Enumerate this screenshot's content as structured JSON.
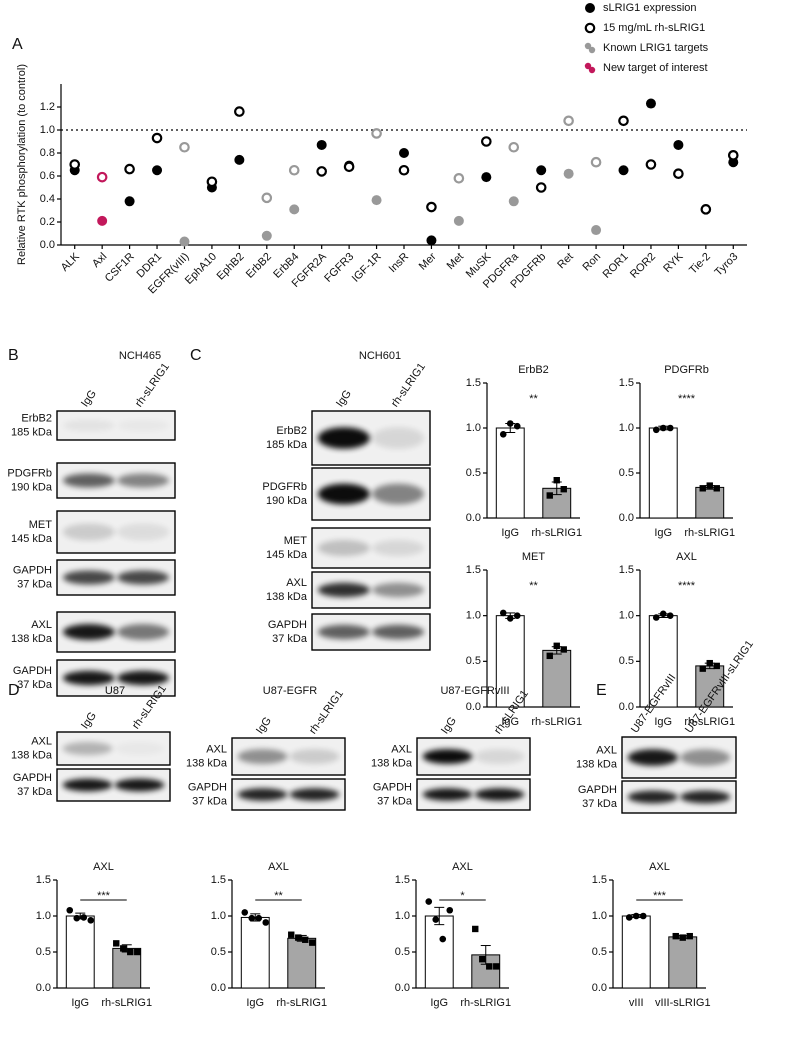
{
  "panels": [
    "A",
    "B",
    "C",
    "D",
    "E"
  ],
  "chart_data": [
    {
      "type": "dot",
      "y_label": "Relative RTK phosphorylation (to control)",
      "categories": [
        "ALK",
        "Axl",
        "CSF1R",
        "DDR1",
        "EGFR(vIII)",
        "EphA10",
        "EphB2",
        "ErbB2",
        "ErbB4",
        "FGFR2A",
        "FGFR3",
        "IGF-1R",
        "InsR",
        "Mer",
        "Met",
        "MuSK",
        "PDGFRa",
        "PDGFRb",
        "Ret",
        "Ron",
        "ROR1",
        "ROR2",
        "RYK",
        "Tie-2",
        "Tyro3"
      ],
      "series": [
        {
          "name": "sLRIG1 expression",
          "color": "#000000",
          "marker": "filled",
          "values": [
            0.65,
            0.21,
            0.38,
            0.65,
            0.03,
            0.5,
            0.74,
            0.08,
            0.31,
            0.87,
            0.69,
            0.39,
            0.8,
            0.04,
            0.21,
            0.59,
            0.38,
            0.65,
            0.62,
            0.13,
            0.65,
            1.23,
            0.87,
            0.31,
            0.72
          ]
        },
        {
          "name": "15 mg/mL rh-sLRIG1",
          "color": "#000000",
          "marker": "open",
          "values": [
            0.7,
            0.59,
            0.66,
            0.93,
            0.85,
            0.55,
            1.16,
            0.41,
            0.65,
            0.64,
            0.68,
            0.97,
            0.65,
            0.33,
            0.58,
            0.9,
            0.85,
            0.5,
            1.08,
            0.72,
            1.08,
            0.7,
            0.62,
            0.31,
            0.78
          ]
        }
      ],
      "groups": [
        {
          "name": "Known LRIG1 targets",
          "color": "#999999",
          "categories": [
            "EGFR(vIII)",
            "ErbB2",
            "ErbB4",
            "IGF-1R",
            "Met",
            "PDGFRa",
            "Ret",
            "Ron"
          ]
        },
        {
          "name": "New target of interest",
          "color": "#c2185b",
          "categories": [
            "Axl"
          ]
        }
      ],
      "reference_line": 1,
      "ylim": [
        0,
        1.4
      ],
      "yticks": [
        {
          "value": 0,
          "label": "0.0"
        },
        0.2,
        0.4,
        0.6,
        0.8,
        {
          "value": 1,
          "label": "1.0"
        },
        1.2
      ]
    },
    {
      "type": "bar",
      "title": "ErbB2",
      "categories": [
        "IgG",
        "rh-sLRIG1"
      ],
      "values": [
        1,
        0.33
      ],
      "errors": [
        0.05,
        0.07
      ],
      "points": [
        [
          0.93,
          1.05,
          1.02
        ],
        [
          0.25,
          0.42,
          0.32
        ]
      ],
      "colors": [
        "#ffffff",
        "#a6a6a6"
      ],
      "significance": "**",
      "bracket": false,
      "ylim": [
        0,
        1.5
      ],
      "yticks": [
        {
          "value": 0,
          "label": "0.0"
        },
        0.5,
        {
          "value": 1,
          "label": "1.0"
        },
        1.5
      ]
    },
    {
      "type": "bar",
      "title": "PDGFRb",
      "categories": [
        "IgG",
        "rh-sLRIG1"
      ],
      "values": [
        1,
        0.34
      ],
      "errors": [
        0.02,
        0.02
      ],
      "points": [
        [
          0.98,
          1,
          1
        ],
        [
          0.33,
          0.36,
          0.33
        ]
      ],
      "colors": [
        "#ffffff",
        "#a6a6a6"
      ],
      "significance": "****",
      "bracket": false,
      "ylim": [
        0,
        1.5
      ],
      "yticks": [
        {
          "value": 0,
          "label": "0.0"
        },
        0.5,
        {
          "value": 1,
          "label": "1.0"
        },
        1.5
      ]
    },
    {
      "type": "bar",
      "title": "MET",
      "categories": [
        "IgG",
        "rh-sLRIG1"
      ],
      "values": [
        1,
        0.62
      ],
      "errors": [
        0.03,
        0.04
      ],
      "points": [
        [
          1.03,
          0.97,
          1
        ],
        [
          0.56,
          0.67,
          0.63
        ]
      ],
      "colors": [
        "#ffffff",
        "#a6a6a6"
      ],
      "significance": "**",
      "bracket": false,
      "ylim": [
        0,
        1.5
      ],
      "yticks": [
        {
          "value": 0,
          "label": "0.0"
        },
        0.5,
        {
          "value": 1,
          "label": "1.0"
        },
        1.5
      ]
    },
    {
      "type": "bar",
      "title": "AXL",
      "categories": [
        "IgG",
        "rh-sLRIG1"
      ],
      "values": [
        1,
        0.45
      ],
      "errors": [
        0.02,
        0.03
      ],
      "points": [
        [
          0.98,
          1.02,
          1
        ],
        [
          0.42,
          0.48,
          0.45
        ]
      ],
      "colors": [
        "#ffffff",
        "#a6a6a6"
      ],
      "significance": "****",
      "bracket": false,
      "ylim": [
        0,
        1.5
      ],
      "yticks": [
        {
          "value": 0,
          "label": "0.0"
        },
        0.5,
        {
          "value": 1,
          "label": "1.0"
        },
        1.5
      ]
    },
    {
      "type": "bar",
      "title": "AXL",
      "categories": [
        "IgG",
        "rh-sLRIG1"
      ],
      "values": [
        1,
        0.55
      ],
      "errors": [
        0.04,
        0.05
      ],
      "points": [
        [
          1.08,
          0.97,
          0.98,
          0.94
        ],
        [
          0.62,
          0.55,
          0.5,
          0.5
        ]
      ],
      "colors": [
        "#ffffff",
        "#a6a6a6"
      ],
      "significance": "***",
      "bracket": true,
      "ylim": [
        0,
        1.5
      ],
      "yticks": [
        {
          "value": 0,
          "label": "0.0"
        },
        0.5,
        {
          "value": 1,
          "label": "1.0"
        },
        1.5
      ]
    },
    {
      "type": "bar",
      "title": "AXL",
      "categories": [
        "IgG",
        "rh-sLRIG1"
      ],
      "values": [
        0.98,
        0.69
      ],
      "errors": [
        0.05,
        0.04
      ],
      "points": [
        [
          1.05,
          0.97,
          0.97,
          0.91
        ],
        [
          0.74,
          0.7,
          0.67,
          0.63
        ]
      ],
      "colors": [
        "#ffffff",
        "#a6a6a6"
      ],
      "significance": "**",
      "bracket": true,
      "ylim": [
        0,
        1.5
      ],
      "yticks": [
        {
          "value": 0,
          "label": "0.0"
        },
        0.5,
        {
          "value": 1,
          "label": "1.0"
        },
        1.5
      ]
    },
    {
      "type": "bar",
      "title": "AXL",
      "categories": [
        "IgG",
        "rh-sLRIG1"
      ],
      "values": [
        1,
        0.46
      ],
      "errors": [
        0.12,
        0.13
      ],
      "points": [
        [
          1.2,
          0.95,
          0.68,
          1.08
        ],
        [
          0.82,
          0.4,
          0.3,
          0.3
        ]
      ],
      "colors": [
        "#ffffff",
        "#a6a6a6"
      ],
      "significance": "*",
      "bracket": true,
      "ylim": [
        0,
        1.5
      ],
      "yticks": [
        {
          "value": 0,
          "label": "0.0"
        },
        0.5,
        {
          "value": 1,
          "label": "1.0"
        },
        1.5
      ]
    },
    {
      "type": "bar",
      "title": "AXL",
      "categories": [
        "vIII",
        "vIII-sLRIG1"
      ],
      "values": [
        1,
        0.71
      ],
      "errors": [
        0.02,
        0.02
      ],
      "points": [
        [
          0.98,
          1,
          1
        ],
        [
          0.72,
          0.7,
          0.72
        ]
      ],
      "colors": [
        "#ffffff",
        "#a6a6a6"
      ],
      "significance": "***",
      "bracket": true,
      "ylim": [
        0,
        1.5
      ],
      "yticks": [
        {
          "value": 0,
          "label": "0.0"
        },
        0.5,
        {
          "value": 1,
          "label": "1.0"
        },
        1.5
      ]
    }
  ],
  "blots": [
    {
      "title": "NCH465",
      "lanes": [
        "IgG",
        "rh-sLRIG1"
      ],
      "rows": [
        {
          "protein": "ErbB2",
          "size": "185 kDa"
        },
        {
          "protein": "PDGFRb",
          "size": "190 kDa"
        },
        {
          "protein": "MET",
          "size": "145 kDa"
        },
        {
          "protein": "GAPDH",
          "size": "37 kDa"
        },
        {
          "protein": "AXL",
          "size": "138 kDa"
        },
        {
          "protein": "GAPDH",
          "size": "37 kDa"
        }
      ]
    },
    {
      "title": "NCH601",
      "lanes": [
        "IgG",
        "rh-sLRIG1"
      ],
      "rows": [
        {
          "protein": "ErbB2",
          "size": "185 kDa"
        },
        {
          "protein": "PDGFRb",
          "size": "190 kDa"
        },
        {
          "protein": "MET",
          "size": "145 kDa"
        },
        {
          "protein": "AXL",
          "size": "138 kDa"
        },
        {
          "protein": "GAPDH",
          "size": "37 kDa"
        }
      ]
    },
    {
      "title": "U87",
      "lanes": [
        "IgG",
        "rh-sLRIG1"
      ],
      "rows": [
        {
          "protein": "AXL",
          "size": "138 kDa"
        },
        {
          "protein": "GAPDH",
          "size": "37 kDa"
        }
      ]
    },
    {
      "title": "U87-EGFR",
      "lanes": [
        "IgG",
        "rh-sLRIG1"
      ],
      "rows": [
        {
          "protein": "AXL",
          "size": "138 kDa"
        },
        {
          "protein": "GAPDH",
          "size": "37 kDa"
        }
      ]
    },
    {
      "title": "U87-EGFRvIII",
      "lanes": [
        "IgG",
        "rh-sLRIG1"
      ],
      "rows": [
        {
          "protein": "AXL",
          "size": "138 kDa"
        },
        {
          "protein": "GAPDH",
          "size": "37 kDa"
        }
      ]
    },
    {
      "lanes": [
        "U87-EGFRvIII",
        "U87-EGFRvIII-sLRIG1"
      ],
      "rows": [
        {
          "protein": "AXL",
          "size": "138 kDa"
        },
        {
          "protein": "GAPDH",
          "size": "37 kDa"
        }
      ]
    }
  ]
}
